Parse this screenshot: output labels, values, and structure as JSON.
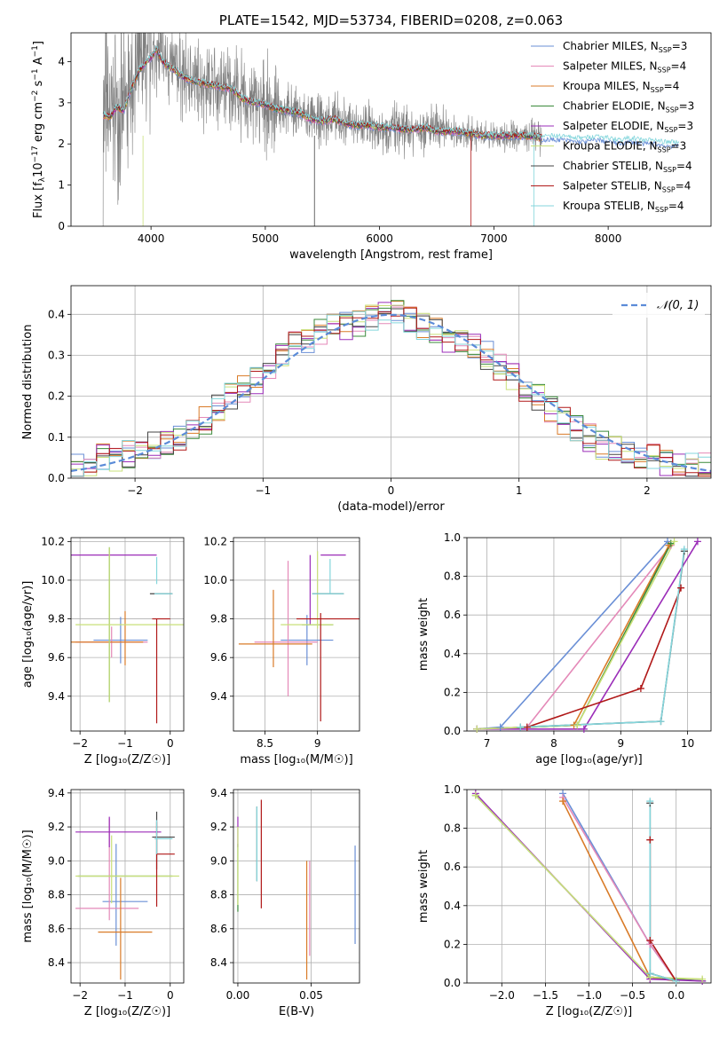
{
  "chart_data": [
    {
      "id": "spectrum",
      "type": "line",
      "title": "PLATE=1542, MJD=53734, FIBERID=0208, z=0.063",
      "xlabel": "wavelength [Angstrom, rest frame]",
      "ylabel_parts": [
        "Flux [f",
        "λ",
        "10",
        "−17",
        " erg cm",
        "−2",
        " s",
        "−1",
        " A",
        "−1",
        "]"
      ],
      "xlim": [
        3300,
        8900
      ],
      "ylim": [
        0,
        4.7
      ],
      "xticks": [
        4000,
        5000,
        6000,
        7000,
        8000
      ],
      "yticks": [
        0,
        1,
        2,
        3,
        4
      ],
      "grid": false,
      "legend_position": "upper-right",
      "data_range": [
        3580,
        7420
      ],
      "data_color": "#808080",
      "model_envelope": {
        "x": [
          3580,
          3640,
          3700,
          3760,
          3820,
          3900,
          3960,
          4000,
          4050,
          4100,
          4200,
          4300,
          4400,
          4500,
          4600,
          4700,
          4800,
          4900,
          5000,
          5100,
          5200,
          5300,
          5400,
          5500,
          5600,
          5700,
          5800,
          5900,
          6000,
          6100,
          6200,
          6300,
          6400,
          6500,
          6600,
          6700,
          6800,
          6900,
          7000,
          7100,
          7200,
          7300,
          7400,
          7500,
          7600,
          7700,
          7800,
          7900,
          8000,
          8100,
          8200,
          8300,
          8400,
          8500,
          8600
        ],
        "y": [
          2.7,
          2.65,
          2.9,
          2.8,
          3.3,
          3.8,
          4.0,
          4.1,
          4.3,
          4.0,
          3.8,
          3.6,
          3.5,
          3.45,
          3.4,
          3.35,
          3.1,
          3.0,
          2.95,
          2.85,
          2.8,
          2.75,
          2.6,
          2.55,
          2.6,
          2.5,
          2.45,
          2.45,
          2.4,
          2.4,
          2.35,
          2.35,
          2.4,
          2.3,
          2.3,
          2.3,
          2.25,
          2.2,
          2.2,
          2.2,
          2.2,
          2.2,
          2.15,
          2.15,
          2.15,
          2.1,
          2.1,
          2.15,
          2.1,
          2.05,
          2.1,
          2.05,
          2.05,
          2.0,
          2.0
        ]
      },
      "series": [
        {
          "name": "Chabrier MILES, N",
          "sub": "SSP",
          "suffix": "=3",
          "color": "#6a8fd6"
        },
        {
          "name": "Salpeter MILES, N",
          "sub": "SSP",
          "suffix": "=4",
          "color": "#e489b8"
        },
        {
          "name": "Kroupa MILES, N",
          "sub": "SSP",
          "suffix": "=4",
          "color": "#d97b28"
        },
        {
          "name": "Chabrier ELODIE, N",
          "sub": "SSP",
          "suffix": "=3",
          "color": "#3a8a3a"
        },
        {
          "name": "Salpeter ELODIE, N",
          "sub": "SSP",
          "suffix": "=3",
          "color": "#9b2db8"
        },
        {
          "name": "Kroupa ELODIE, N",
          "sub": "SSP",
          "suffix": "=3",
          "color": "#c9e07a"
        },
        {
          "name": "Chabrier STELIB, N",
          "sub": "SSP",
          "suffix": "=4",
          "color": "#444444"
        },
        {
          "name": "Salpeter STELIB, N",
          "sub": "SSP",
          "suffix": "=4",
          "color": "#b01818"
        },
        {
          "name": "Kroupa STELIB, N",
          "sub": "SSP",
          "suffix": "=4",
          "color": "#84d6dc"
        }
      ]
    },
    {
      "id": "residuals",
      "type": "line",
      "xlabel": "(data-model)/error",
      "ylabel": "Normed distribution",
      "xlim": [
        -2.5,
        2.5
      ],
      "ylim": [
        0,
        0.47
      ],
      "xticks": [
        -2,
        -1,
        0,
        1,
        2
      ],
      "yticks": [
        0.0,
        0.1,
        0.2,
        0.3,
        0.4
      ],
      "grid": true,
      "legend_position": "upper-right",
      "legend_label": "𝒩(0, 1)",
      "normal_color": "#5b8bd8",
      "bin_centers": [
        -2.45,
        -2.35,
        -2.25,
        -2.15,
        -2.05,
        -1.95,
        -1.85,
        -1.75,
        -1.65,
        -1.55,
        -1.45,
        -1.35,
        -1.25,
        -1.15,
        -1.05,
        -0.95,
        -0.85,
        -0.75,
        -0.65,
        -0.55,
        -0.45,
        -0.35,
        -0.25,
        -0.15,
        -0.05,
        0.05,
        0.15,
        0.25,
        0.35,
        0.45,
        0.55,
        0.65,
        0.75,
        0.85,
        0.95,
        1.05,
        1.15,
        1.25,
        1.35,
        1.45,
        1.55,
        1.65,
        1.75,
        1.85,
        1.95,
        2.05,
        2.15,
        2.25,
        2.35,
        2.45
      ],
      "base": [
        0.03,
        0.04,
        0.05,
        0.05,
        0.06,
        0.07,
        0.08,
        0.09,
        0.1,
        0.12,
        0.14,
        0.17,
        0.2,
        0.22,
        0.24,
        0.27,
        0.3,
        0.33,
        0.34,
        0.36,
        0.37,
        0.37,
        0.38,
        0.39,
        0.4,
        0.4,
        0.39,
        0.37,
        0.36,
        0.34,
        0.33,
        0.32,
        0.3,
        0.27,
        0.25,
        0.22,
        0.2,
        0.17,
        0.14,
        0.12,
        0.1,
        0.08,
        0.07,
        0.06,
        0.05,
        0.05,
        0.04,
        0.04,
        0.03,
        0.03
      ]
    },
    {
      "id": "age-vs-Z",
      "type": "scatter",
      "xlabel": "Z [log₁₀(Z/Z☉)]",
      "ylabel": "age  [log₁₀(age/yr)]",
      "xlim": [
        -2.2,
        0.3
      ],
      "ylim": [
        9.22,
        10.22
      ],
      "xticks": [
        -2,
        -1,
        0
      ],
      "yticks": [
        9.4,
        9.6,
        9.8,
        10.0,
        10.2
      ],
      "grid": true,
      "points": [
        {
          "c": 0,
          "x": -1.1,
          "y": 9.69,
          "ex": 0.6,
          "ey": 0.12
        },
        {
          "c": 1,
          "x": -1.3,
          "y": 9.68,
          "ex": 0.8,
          "ey": 0.08
        },
        {
          "c": 2,
          "x": -1.4,
          "y": 9.68,
          "ex": 0.8,
          "ey": 0.0
        },
        {
          "c": 2,
          "x": -1.0,
          "y": 9.7,
          "ex": 0.0,
          "ey": 0.14
        },
        {
          "c": 3,
          "x": -1.35,
          "y": 9.77,
          "ex": 0.0,
          "ey": 0.4
        },
        {
          "c": 4,
          "x": -1.3,
          "y": 10.13,
          "ex": 1.0,
          "ey": 0.0
        },
        {
          "c": 5,
          "x": -0.9,
          "y": 9.77,
          "ex": 1.2,
          "ey": 0.0
        },
        {
          "c": 5,
          "x": -1.35,
          "y": 9.77,
          "ex": 0.0,
          "ey": 0.4
        },
        {
          "c": 6,
          "x": -0.2,
          "y": 9.93,
          "ex": 0.25,
          "ey": 0.0
        },
        {
          "c": 7,
          "x": -0.2,
          "y": 9.8,
          "ex": 0.2,
          "ey": 0.0
        },
        {
          "c": 7,
          "x": -0.3,
          "y": 9.53,
          "ex": 0.0,
          "ey": 0.27
        },
        {
          "c": 8,
          "x": -0.15,
          "y": 9.93,
          "ex": 0.2,
          "ey": 0.0
        },
        {
          "c": 8,
          "x": -0.3,
          "y": 10.05,
          "ex": 0.0,
          "ey": 0.07
        }
      ]
    },
    {
      "id": "age-vs-mass",
      "type": "scatter",
      "xlabel": "mass [log₁₀(M/M☉)]",
      "ylabel": "",
      "xlim": [
        8.2,
        9.4
      ],
      "ylim": [
        9.22,
        10.22
      ],
      "xticks": [
        8.5,
        9.0
      ],
      "yticks": [
        9.4,
        9.6,
        9.8,
        10.0,
        10.2
      ],
      "grid": true,
      "points": [
        {
          "c": 0,
          "x": 8.9,
          "y": 9.69,
          "ex": 0.25,
          "ey": 0.13
        },
        {
          "c": 1,
          "x": 8.7,
          "y": 9.68,
          "ex": 0.3,
          "ey": 0.0
        },
        {
          "c": 1,
          "x": 8.72,
          "y": 9.75,
          "ex": 0.0,
          "ey": 0.35
        },
        {
          "c": 2,
          "x": 8.6,
          "y": 9.67,
          "ex": 0.35,
          "ey": 0.0
        },
        {
          "c": 2,
          "x": 8.58,
          "y": 9.75,
          "ex": 0.0,
          "ey": 0.2
        },
        {
          "c": 3,
          "x": 9.0,
          "y": 9.77,
          "ex": 0.15,
          "ey": 0.0
        },
        {
          "c": 4,
          "x": 9.15,
          "y": 10.13,
          "ex": 0.12,
          "ey": 0.0
        },
        {
          "c": 4,
          "x": 8.93,
          "y": 9.95,
          "ex": 0.0,
          "ey": 0.18
        },
        {
          "c": 5,
          "x": 8.9,
          "y": 9.77,
          "ex": 0.25,
          "ey": 0.0
        },
        {
          "c": 5,
          "x": 9.0,
          "y": 9.95,
          "ex": 0.0,
          "ey": 0.2
        },
        {
          "c": 6,
          "x": 9.1,
          "y": 9.93,
          "ex": 0.15,
          "ey": 0.0
        },
        {
          "c": 7,
          "x": 9.1,
          "y": 9.8,
          "ex": 0.3,
          "ey": 0.0
        },
        {
          "c": 7,
          "x": 9.03,
          "y": 9.55,
          "ex": 0.0,
          "ey": 0.28
        },
        {
          "c": 8,
          "x": 9.1,
          "y": 9.93,
          "ex": 0.15,
          "ey": 0.0
        },
        {
          "c": 8,
          "x": 9.12,
          "y": 10.02,
          "ex": 0.0,
          "ey": 0.09
        }
      ]
    },
    {
      "id": "weight-vs-age",
      "type": "line",
      "xlabel": "age  [log₁₀(age/yr)]",
      "ylabel": "mass weight",
      "xlim": [
        6.7,
        10.35
      ],
      "ylim": [
        0,
        1.0
      ],
      "xticks": [
        7,
        8,
        9,
        10
      ],
      "yticks": [
        0.0,
        0.2,
        0.4,
        0.6,
        0.8,
        1.0
      ],
      "grid": true,
      "series": [
        {
          "c": 0,
          "x": [
            6.85,
            7.2,
            9.7
          ],
          "y": [
            0.01,
            0.02,
            0.98
          ]
        },
        {
          "c": 1,
          "x": [
            6.85,
            7.6,
            9.75
          ],
          "y": [
            0.01,
            0.02,
            0.96
          ]
        },
        {
          "c": 2,
          "x": [
            6.85,
            8.3,
            9.72
          ],
          "y": [
            0.01,
            0.03,
            0.96
          ]
        },
        {
          "c": 3,
          "x": [
            6.85,
            8.35,
            9.75
          ],
          "y": [
            0.01,
            0.03,
            0.97
          ]
        },
        {
          "c": 4,
          "x": [
            6.85,
            8.45,
            10.15
          ],
          "y": [
            0.01,
            0.01,
            0.98
          ]
        },
        {
          "c": 5,
          "x": [
            6.85,
            8.35,
            9.8
          ],
          "y": [
            0.01,
            0.03,
            0.98
          ]
        },
        {
          "c": 6,
          "x": [
            7.5,
            9.6,
            9.95
          ],
          "y": [
            0.02,
            0.05,
            0.93
          ]
        },
        {
          "c": 7,
          "x": [
            7.6,
            9.3,
            9.9
          ],
          "y": [
            0.02,
            0.22,
            0.74
          ]
        },
        {
          "c": 8,
          "x": [
            7.5,
            9.6,
            9.95
          ],
          "y": [
            0.02,
            0.05,
            0.94
          ]
        }
      ]
    },
    {
      "id": "mass-vs-Z",
      "type": "scatter",
      "xlabel": "Z [log₁₀(Z/Z☉)]",
      "ylabel": "mass [log₁₀(M/M☉)]",
      "xlim": [
        -2.2,
        0.3
      ],
      "ylim": [
        8.28,
        9.42
      ],
      "xticks": [
        -2,
        -1,
        0
      ],
      "yticks": [
        8.4,
        8.6,
        8.8,
        9.0,
        9.2,
        9.4
      ],
      "grid": true,
      "points": [
        {
          "c": 0,
          "x": -1.0,
          "y": 8.76,
          "ex": 0.5,
          "ey": 0.0
        },
        {
          "c": 0,
          "x": -1.2,
          "y": 8.8,
          "ex": 0.0,
          "ey": 0.3
        },
        {
          "c": 1,
          "x": -1.4,
          "y": 8.72,
          "ex": 0.7,
          "ey": 0.0
        },
        {
          "c": 1,
          "x": -1.35,
          "y": 8.95,
          "ex": 0.0,
          "ey": 0.3
        },
        {
          "c": 2,
          "x": -1.0,
          "y": 8.58,
          "ex": 0.6,
          "ey": 0.0
        },
        {
          "c": 2,
          "x": -1.1,
          "y": 8.6,
          "ex": 0.0,
          "ey": 0.3
        },
        {
          "c": 3,
          "x": -1.0,
          "y": 8.91,
          "ex": 1.05,
          "ey": 0.0
        },
        {
          "c": 4,
          "x": -1.15,
          "y": 9.17,
          "ex": 0.95,
          "ey": 0.0
        },
        {
          "c": 4,
          "x": -1.35,
          "y": 9.17,
          "ex": 0.0,
          "ey": 0.09
        },
        {
          "c": 5,
          "x": -0.95,
          "y": 8.91,
          "ex": 1.15,
          "ey": 0.0
        },
        {
          "c": 5,
          "x": -1.3,
          "y": 8.95,
          "ex": 0.0,
          "ey": 0.2
        },
        {
          "c": 6,
          "x": -0.15,
          "y": 9.14,
          "ex": 0.25,
          "ey": 0.0
        },
        {
          "c": 6,
          "x": -0.3,
          "y": 9.12,
          "ex": 0.0,
          "ey": 0.17
        },
        {
          "c": 7,
          "x": -0.1,
          "y": 9.04,
          "ex": 0.2,
          "ey": 0.0
        },
        {
          "c": 7,
          "x": -0.3,
          "y": 8.98,
          "ex": 0.0,
          "ey": 0.25
        },
        {
          "c": 8,
          "x": -0.15,
          "y": 9.13,
          "ex": 0.2,
          "ey": 0.0
        },
        {
          "c": 8,
          "x": -0.3,
          "y": 9.14,
          "ex": 0.0,
          "ey": 0.1
        }
      ]
    },
    {
      "id": "mass-vs-EBV",
      "type": "scatter",
      "xlabel": "E(B-V)",
      "ylabel": "",
      "xlim": [
        -0.003,
        0.083
      ],
      "ylim": [
        8.28,
        9.42
      ],
      "xticks": [
        0.0,
        0.05
      ],
      "xticklabels": [
        "0.00",
        "0.05"
      ],
      "yticks": [
        8.4,
        8.6,
        8.8,
        9.0,
        9.2,
        9.4
      ],
      "grid": true,
      "points": [
        {
          "c": 0,
          "x": 0.08,
          "y": 8.8,
          "ex": 0.0,
          "ey": 0.29
        },
        {
          "c": 1,
          "x": 0.049,
          "y": 8.72,
          "ex": 0.0,
          "ey": 0.28
        },
        {
          "c": 2,
          "x": 0.047,
          "y": 8.65,
          "ex": 0.0,
          "ey": 0.35
        },
        {
          "c": 3,
          "x": 0.0,
          "y": 8.9,
          "ex": 0.0,
          "ey": 0.2
        },
        {
          "c": 4,
          "x": 0.0,
          "y": 9.17,
          "ex": 0.0,
          "ey": 0.09
        },
        {
          "c": 5,
          "x": 0.0,
          "y": 8.97,
          "ex": 0.0,
          "ey": 0.23
        },
        {
          "c": 6,
          "x": 0.013,
          "y": 9.1,
          "ex": 0.0,
          "ey": 0.22
        },
        {
          "c": 7,
          "x": 0.016,
          "y": 9.04,
          "ex": 0.0,
          "ey": 0.32
        },
        {
          "c": 8,
          "x": 0.013,
          "y": 9.1,
          "ex": 0.0,
          "ey": 0.22
        }
      ]
    },
    {
      "id": "weight-vs-Z",
      "type": "line",
      "xlabel": "Z [log₁₀(Z/Z☉)]",
      "ylabel": "mass weight",
      "xlim": [
        -2.4,
        0.4
      ],
      "ylim": [
        0,
        1.0
      ],
      "xticks": [
        -2.0,
        -1.5,
        -1.0,
        -0.5,
        0.0
      ],
      "xticklabels": [
        "−2.0",
        "−1.5",
        "−1.0",
        "−0.5",
        "0.0"
      ],
      "yticks": [
        0.0,
        0.2,
        0.4,
        0.6,
        0.8,
        1.0
      ],
      "grid": true,
      "series": [
        {
          "c": 0,
          "x": [
            -1.3,
            -0.3,
            0.0
          ],
          "y": [
            0.98,
            0.2,
            0.01
          ]
        },
        {
          "c": 1,
          "x": [
            -1.3,
            -0.3,
            0.0
          ],
          "y": [
            0.96,
            0.2,
            0.01
          ]
        },
        {
          "c": 2,
          "x": [
            -1.3,
            -0.3,
            0.0
          ],
          "y": [
            0.94,
            0.03,
            0.01
          ]
        },
        {
          "c": 3,
          "x": [
            -2.3,
            -0.3,
            0.3
          ],
          "y": [
            0.97,
            0.03,
            0.01
          ]
        },
        {
          "c": 4,
          "x": [
            -2.3,
            -0.3,
            0.3
          ],
          "y": [
            0.98,
            0.02,
            0.01
          ]
        },
        {
          "c": 5,
          "x": [
            -2.3,
            -0.3,
            0.3
          ],
          "y": [
            0.97,
            0.03,
            0.02
          ]
        },
        {
          "c": 6,
          "x": [
            -0.3,
            -0.3,
            0.0
          ],
          "y": [
            0.93,
            0.05,
            0.01
          ]
        },
        {
          "c": 7,
          "x": [
            -0.3,
            -0.3,
            0.0
          ],
          "y": [
            0.74,
            0.22,
            0.01
          ]
        },
        {
          "c": 8,
          "x": [
            -0.3,
            -0.3,
            0.0
          ],
          "y": [
            0.94,
            0.05,
            0.01
          ]
        }
      ]
    }
  ]
}
